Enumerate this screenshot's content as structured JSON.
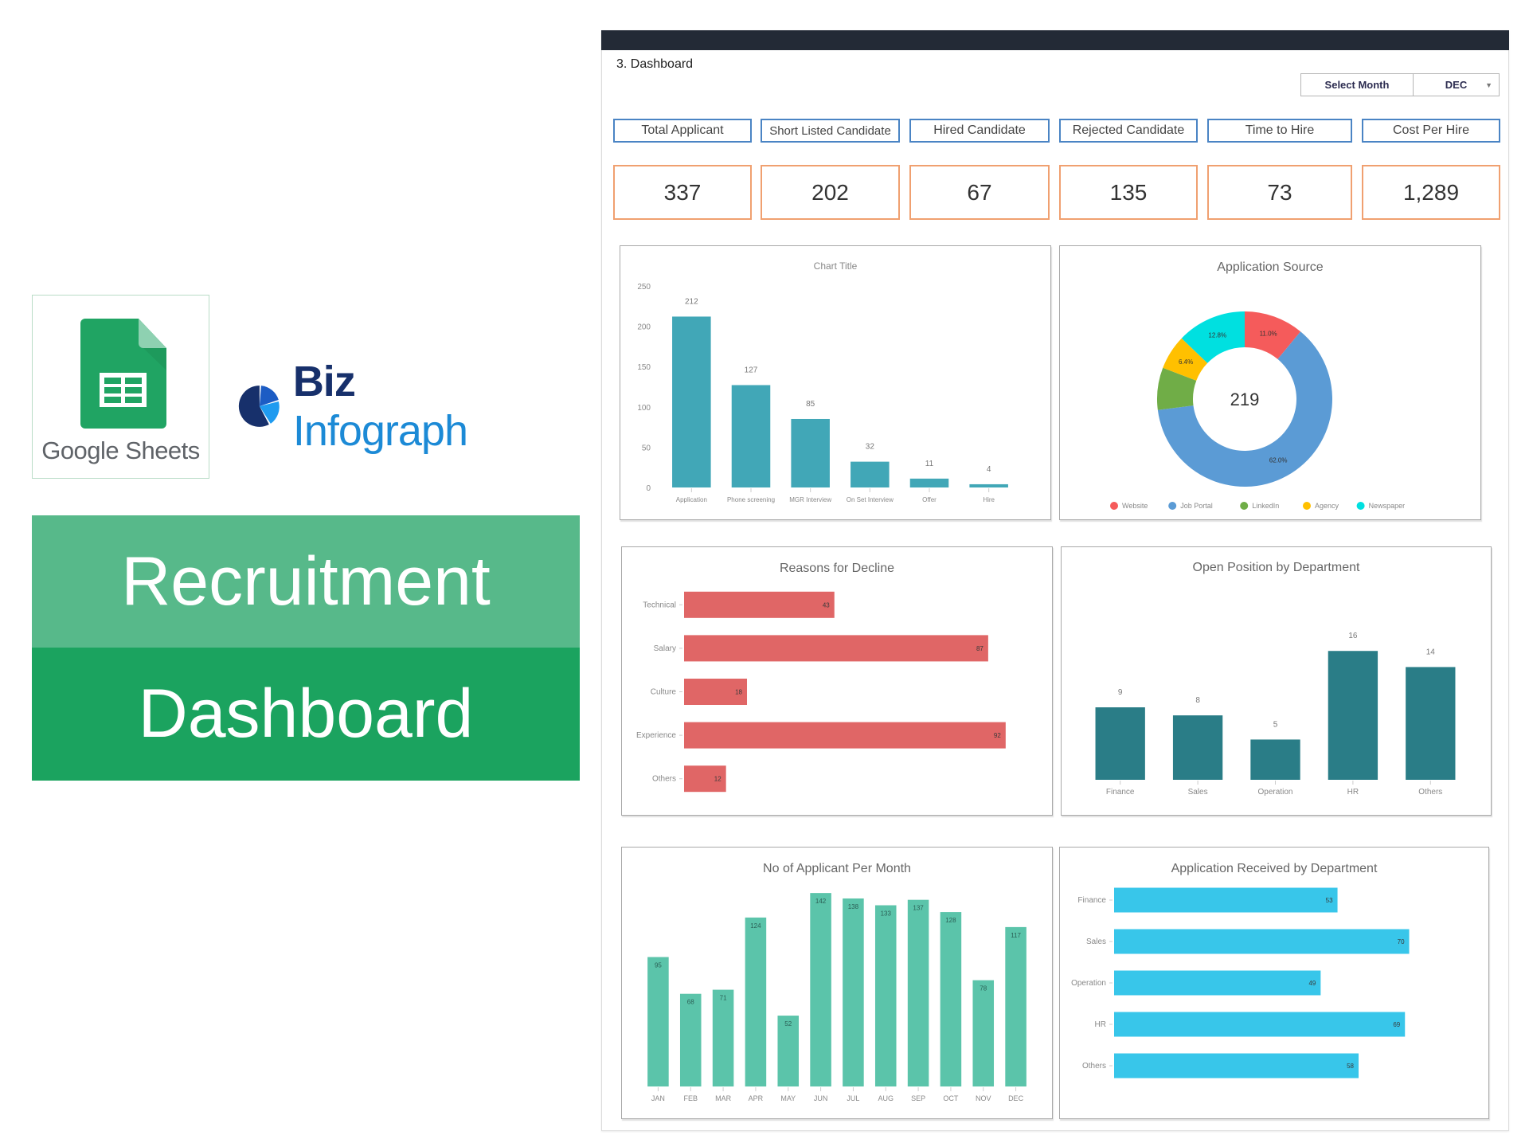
{
  "branding": {
    "sheets_label": "Google Sheets",
    "biz_part1": "Biz",
    "biz_part2": "Infograph",
    "banner_line1": "Recruitment",
    "banner_line2": "Dashboard",
    "colors": {
      "banner_top": "#57b98a",
      "banner_bottom": "#1ba35f",
      "sheets_green": "#20a463",
      "biz_dark": "#17306b",
      "biz_light": "#1c8ad6"
    }
  },
  "dashboard": {
    "sheet_title": "3. Dashboard",
    "month_select": {
      "label": "Select Month",
      "value": "DEC"
    },
    "kpis": [
      {
        "label": "Total Applicant",
        "value": "337"
      },
      {
        "label": "Short Listed Candidate",
        "value": "202"
      },
      {
        "label": "Hired Candidate",
        "value": "67"
      },
      {
        "label": "Rejected Candidate",
        "value": "135"
      },
      {
        "label": "Time to Hire",
        "value": "73"
      },
      {
        "label": "Cost Per Hire",
        "value": "1,289"
      }
    ]
  },
  "chart_data": [
    {
      "id": "funnel",
      "type": "bar",
      "title": "Chart Title",
      "categories": [
        "Application",
        "Phone screening",
        "MGR Interview",
        "On Set Interview",
        "Offer",
        "Hire"
      ],
      "values": [
        212,
        127,
        85,
        32,
        11,
        4
      ],
      "yticks": [
        0,
        50,
        100,
        150,
        200,
        250
      ],
      "ylim": [
        0,
        250
      ],
      "color": "#41a7b7",
      "xlabel": "",
      "ylabel": ""
    },
    {
      "id": "source",
      "type": "pie",
      "title": "Application Source",
      "center_label": "219",
      "categories": [
        "Website",
        "Job Portal",
        "LinkedIn",
        "Agency",
        "Newspaper"
      ],
      "values": [
        11.0,
        62.0,
        7.8,
        6.4,
        12.8
      ],
      "labels": [
        "11.0%",
        "62.0%",
        "",
        "6.4%",
        "12.8%"
      ],
      "colors": [
        "#f55b5b",
        "#5b9bd5",
        "#70ad47",
        "#ffc000",
        "#00e0e0"
      ],
      "legend_position": "bottom"
    },
    {
      "id": "decline",
      "type": "bar",
      "orientation": "horizontal",
      "title": "Reasons for Decline",
      "categories": [
        "Technical",
        "Salary",
        "Culture",
        "Experience",
        "Others"
      ],
      "values": [
        43,
        87,
        18,
        92,
        12
      ],
      "color": "#e06666"
    },
    {
      "id": "open_positions",
      "type": "bar",
      "title": "Open Position by Department",
      "categories": [
        "Finance",
        "Sales",
        "Operation",
        "HR",
        "Others"
      ],
      "values": [
        9,
        8,
        5,
        16,
        14
      ],
      "color": "#2a7d87"
    },
    {
      "id": "monthly",
      "type": "bar",
      "title": "No of Applicant Per Month",
      "categories": [
        "JAN",
        "FEB",
        "MAR",
        "APR",
        "MAY",
        "JUN",
        "JUL",
        "AUG",
        "SEP",
        "OCT",
        "NOV",
        "DEC"
      ],
      "values": [
        95,
        68,
        71,
        124,
        52,
        142,
        138,
        133,
        137,
        128,
        78,
        117
      ],
      "color": "#5bc4aa"
    },
    {
      "id": "received",
      "type": "bar",
      "orientation": "horizontal",
      "title": "Application Received by Department",
      "categories": [
        "Finance",
        "Sales",
        "Operation",
        "HR",
        "Others"
      ],
      "values": [
        53,
        70,
        49,
        69,
        58
      ],
      "color": "#38c6ea"
    }
  ]
}
